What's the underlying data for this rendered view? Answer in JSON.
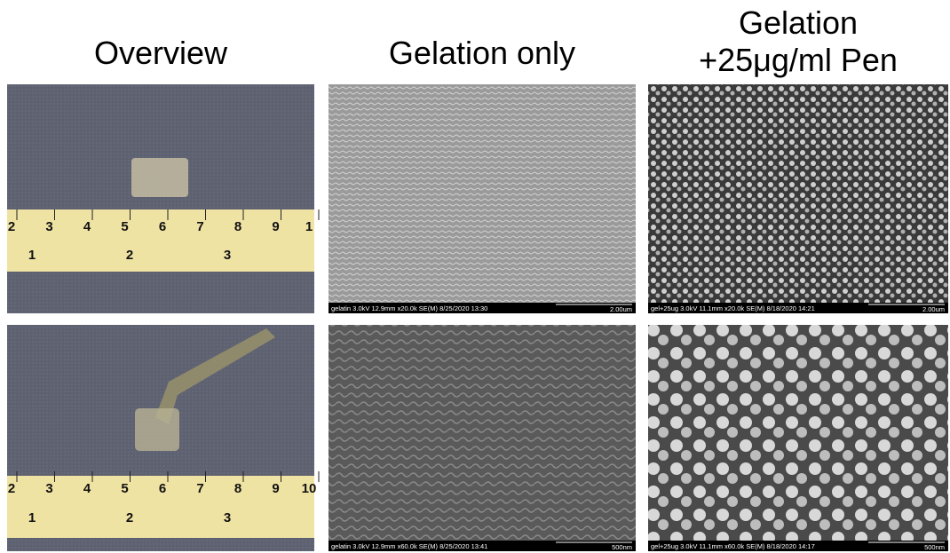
{
  "headers": {
    "overview": "Overview",
    "gelation_only": "Gelation only",
    "gelation_pen": [
      "Gelation",
      "+25μg/ml Pen"
    ]
  },
  "photos": [
    {
      "ruler_top": [
        2,
        3,
        4,
        5,
        6,
        7,
        8,
        9,
        1
      ],
      "ruler_bottom": [
        1,
        2,
        3
      ]
    },
    {
      "ruler_top": [
        2,
        3,
        4,
        5,
        6,
        7,
        8,
        9,
        10
      ],
      "ruler_bottom": [
        1,
        2,
        3
      ]
    }
  ],
  "sem": [
    [
      {
        "caption": "gelatin 3.0kV 12.9mm x20.0k SE(M) 8/25/2020 13:30",
        "scale": "2.00um"
      },
      {
        "caption": "gel+25ug 3.0kV 11.1mm x20.0k SE(M) 8/18/2020 14:21",
        "scale": "2.00um"
      }
    ],
    [
      {
        "caption": "gelatin 3.0kV 12.9mm x60.0k SE(M) 8/25/2020 13:41",
        "scale": "500nm"
      },
      {
        "caption": "gel+25ug 3.0kV 11.1mm x60.0k SE(M) 8/18/2020 14:17",
        "scale": "500nm"
      }
    ]
  ]
}
